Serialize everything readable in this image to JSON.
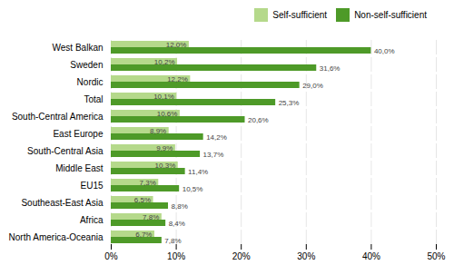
{
  "chart_data": {
    "type": "bar",
    "orientation": "horizontal",
    "categories": [
      "North America-Oceania",
      "Africa",
      "Southeast-East Asia",
      "EU15",
      "Middle East",
      "South-Central Asia",
      "East Europe",
      "South-Central America",
      "Total",
      "Nordic",
      "Sweden",
      "West Balkan"
    ],
    "series": [
      {
        "name": "Self-sufficient",
        "color": "#b5d98b",
        "values": [
          6.7,
          7.8,
          6.5,
          7.3,
          10.3,
          9.9,
          8.9,
          10.6,
          10.1,
          12.2,
          10.2,
          12.0
        ],
        "value_labels": [
          "6,7%",
          "7,8%",
          "6,5%",
          "7,3%",
          "10,3%",
          "9,9%",
          "8,9%",
          "10,6%",
          "10,1%",
          "12,2%",
          "10,2%",
          "12,0%"
        ]
      },
      {
        "name": "Non-self-sufficient",
        "color": "#4e9a28",
        "values": [
          7.8,
          8.4,
          8.8,
          10.5,
          11.4,
          13.7,
          14.2,
          20.6,
          25.3,
          29.0,
          31.6,
          40.0
        ],
        "value_labels": [
          "7,8%",
          "8,4%",
          "8,8%",
          "10,5%",
          "11,4%",
          "13,7%",
          "14,2%",
          "20,6%",
          "25,3%",
          "29,0%",
          "31,6%",
          "40,0%"
        ]
      }
    ],
    "xlim": [
      0,
      50
    ],
    "xticks": [
      {
        "value": 0,
        "label": "0%"
      },
      {
        "value": 10,
        "label": "10%"
      },
      {
        "value": 20,
        "label": "20%"
      },
      {
        "value": 30,
        "label": "30%"
      },
      {
        "value": 40,
        "label": "40%"
      },
      {
        "value": 50,
        "label": "50%"
      }
    ],
    "grid": true,
    "legend": "right",
    "data_labels": true
  }
}
